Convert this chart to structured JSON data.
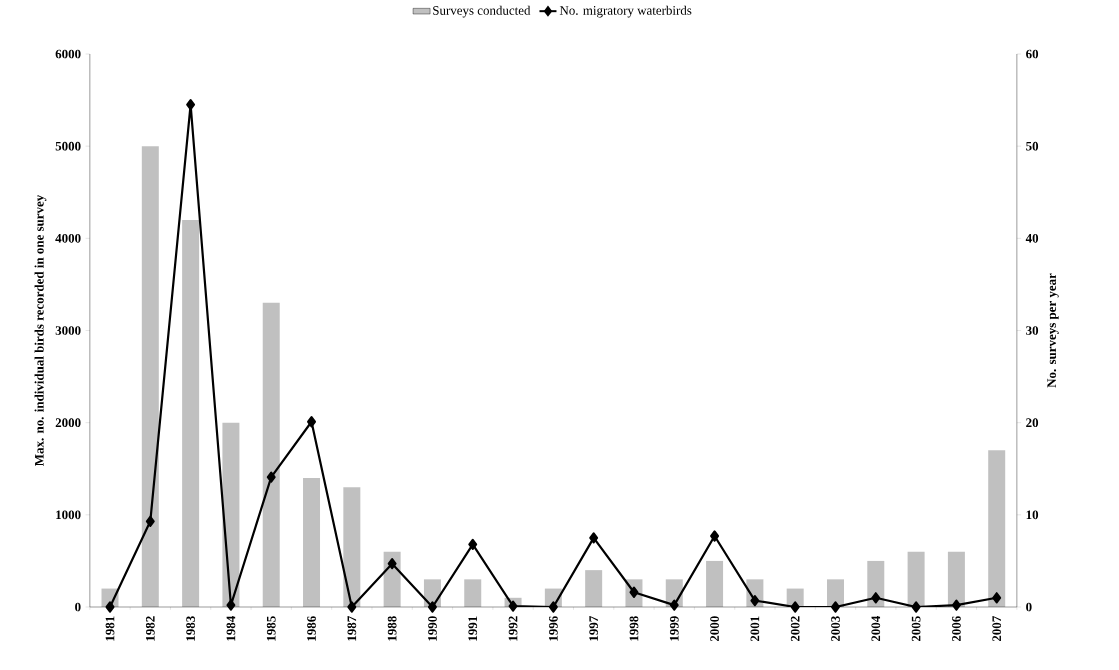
{
  "chart_data": {
    "type": "bar",
    "categories": [
      "1981",
      "1982",
      "1983",
      "1984",
      "1985",
      "1986",
      "1987",
      "1988",
      "1990",
      "1991",
      "1992",
      "1996",
      "1997",
      "1998",
      "1999",
      "2000",
      "2001",
      "2002",
      "2003",
      "2004",
      "2005",
      "2006",
      "2007"
    ],
    "ylabel": "Max. no. individual birds recorded in one survey",
    "y2label": "No. surveys per year",
    "ylim": [
      0,
      6000
    ],
    "yticks": [
      0,
      1000,
      2000,
      3000,
      4000,
      5000,
      6000
    ],
    "y2lim": [
      0,
      60
    ],
    "y2ticks": [
      0,
      10,
      20,
      30,
      40,
      50,
      60
    ],
    "legend": "top",
    "marker": "diamond",
    "series": [
      {
        "name": "Surveys conducted",
        "axis": "y2",
        "color": "#c0c0c0",
        "values": [
          2,
          50,
          42,
          20,
          33,
          14,
          13,
          6,
          3,
          3,
          1,
          2,
          4,
          3,
          3,
          5,
          3,
          2,
          3,
          5,
          6,
          6,
          17
        ]
      },
      {
        "name": "No. migratory waterbirds",
        "type": "line",
        "color": "#000000",
        "values": [
          0,
          930,
          5450,
          20,
          1410,
          2010,
          0,
          470,
          0,
          680,
          10,
          0,
          750,
          160,
          20,
          770,
          70,
          0,
          0,
          100,
          0,
          20,
          100
        ]
      }
    ]
  }
}
